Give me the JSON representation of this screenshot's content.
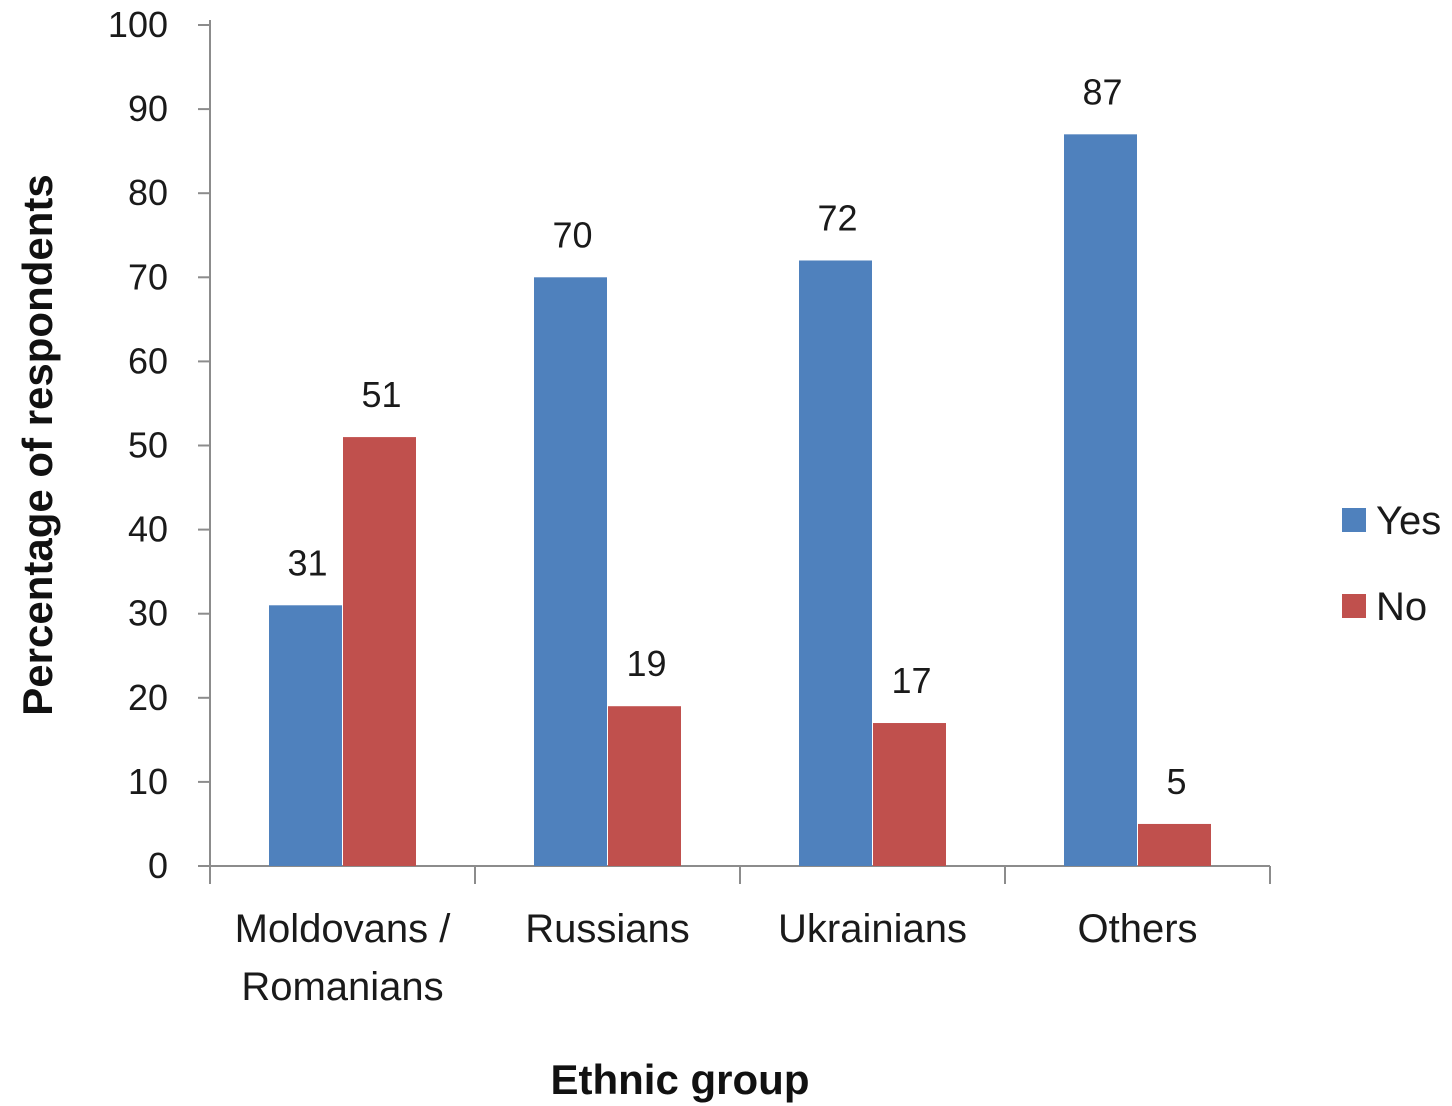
{
  "chart_data": {
    "type": "bar",
    "title": "",
    "xlabel": "Ethnic group",
    "ylabel": "Percentage of respondents",
    "categories": [
      [
        "Moldovans /",
        "Romanians"
      ],
      [
        "Russians"
      ],
      [
        "Ukrainians"
      ],
      [
        "Others"
      ]
    ],
    "series": [
      {
        "name": "Yes",
        "color": "#4F81BD",
        "values": [
          31,
          70,
          72,
          87
        ]
      },
      {
        "name": "No",
        "color": "#C0504D",
        "values": [
          51,
          19,
          17,
          5
        ]
      }
    ],
    "ylim": [
      0,
      100
    ],
    "yticks": [
      0,
      10,
      20,
      30,
      40,
      50,
      60,
      70,
      80,
      90,
      100
    ],
    "grid": false,
    "legend": "right",
    "data_labels": true
  }
}
